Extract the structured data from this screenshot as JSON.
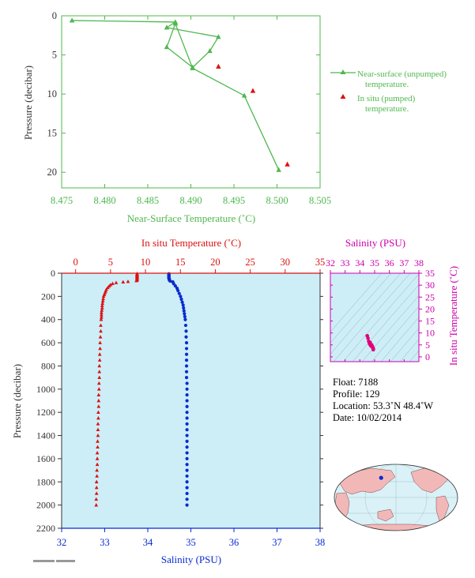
{
  "colors": {
    "green": "#4fb84f",
    "red": "#dd1111",
    "blue": "#0a2ad0",
    "magenta": "#cc00aa",
    "axis": "#333333",
    "profile_bg": "#cdeef7"
  },
  "top_chart": {
    "xlabel": "Near-Surface Temperature (˚C)",
    "ylabel": "Pressure (decibar)",
    "xlim": [
      8.475,
      8.505
    ],
    "ylim": [
      0,
      22
    ],
    "xticks": [
      "8.475",
      "8.480",
      "8.485",
      "8.490",
      "8.495",
      "8.500",
      "8.505"
    ],
    "yticks": [
      "0",
      "5",
      "10",
      "15",
      "20"
    ],
    "legend_unpumped": [
      "Near-surface (unpumped)",
      "temperature."
    ],
    "legend_pumped": [
      "In situ (pumped)",
      "temperature."
    ]
  },
  "bottom_chart": {
    "ylabel": "Pressure (decibar)",
    "top_label": "In situ Temperature (˚C)",
    "bottom_label": "Salinity (PSU)",
    "temp_ticks": [
      "0",
      "5",
      "10",
      "15",
      "20",
      "25",
      "30",
      "35"
    ],
    "sal_ticks": [
      "32",
      "33",
      "34",
      "35",
      "36",
      "37",
      "38"
    ],
    "pres_ticks": [
      "0",
      "200",
      "400",
      "600",
      "800",
      "1000",
      "1200",
      "1400",
      "1600",
      "1800",
      "2000",
      "2200"
    ],
    "temp_lim": [
      -2,
      35
    ],
    "sal_lim": [
      32,
      38
    ],
    "pres_lim": [
      0,
      2200
    ]
  },
  "ts_chart": {
    "top_label": "Salinity (PSU)",
    "right_label": "In situ Temperature (˚C)",
    "sal_ticks": [
      "32",
      "33",
      "34",
      "35",
      "36",
      "37",
      "38"
    ],
    "temp_ticks": [
      "0",
      "5",
      "10",
      "15",
      "20",
      "25",
      "30",
      "35"
    ],
    "sal_lim": [
      32,
      38
    ],
    "temp_lim": [
      -2,
      35
    ]
  },
  "info": {
    "float": "Float:  7188",
    "profile": "Profile:  129",
    "location": "Location:  53.3˚N  48.4˚W",
    "date": "Date:  10/02/2014"
  },
  "map": {
    "marker_lon": -48.4,
    "marker_lat": 53.3
  },
  "chart_data": [
    {
      "type": "line",
      "title": "",
      "xlabel": "Near-Surface Temperature (˚C)",
      "ylabel": "Pressure (decibar)",
      "xlim": [
        8.475,
        8.505
      ],
      "ylim": [
        0,
        22
      ],
      "y_inverted": true,
      "series": [
        {
          "name": "Near-surface (unpumped) temperature.",
          "marker": "triangle",
          "line": true,
          "points": [
            [
              8.4762,
              0.6
            ],
            [
              8.4882,
              0.8
            ],
            [
              8.4872,
              1.5
            ],
            [
              8.4932,
              2.7
            ],
            [
              8.4922,
              4.5
            ],
            [
              8.4902,
              6.6
            ],
            [
              8.4872,
              4.0
            ],
            [
              8.4882,
              1.0
            ],
            [
              8.4902,
              6.7
            ],
            [
              8.4962,
              10.2
            ],
            [
              8.5002,
              19.7
            ]
          ]
        },
        {
          "name": "In situ (pumped) temperature.",
          "marker": "triangle",
          "line": false,
          "points": [
            [
              8.4932,
              6.5
            ],
            [
              8.4972,
              9.6
            ],
            [
              8.5012,
              19.0
            ]
          ]
        }
      ]
    },
    {
      "type": "scatter",
      "title": "",
      "ylabel": "Pressure (decibar)",
      "y_inverted": true,
      "series": [
        {
          "name": "In situ Temperature (˚C)",
          "axis": "top",
          "marker": "triangle",
          "points": [
            [
              8.8,
              5
            ],
            [
              8.8,
              10
            ],
            [
              8.8,
              15
            ],
            [
              8.8,
              20
            ],
            [
              8.8,
              25
            ],
            [
              8.8,
              30
            ],
            [
              8.8,
              35
            ],
            [
              8.8,
              40
            ],
            [
              8.8,
              45
            ],
            [
              8.8,
              50
            ],
            [
              8.8,
              55
            ],
            [
              8.8,
              60
            ],
            [
              8.7,
              65
            ],
            [
              7.5,
              72
            ],
            [
              6.8,
              76
            ],
            [
              5.8,
              82
            ],
            [
              5.3,
              90
            ],
            [
              5.0,
              100
            ],
            [
              4.8,
              112
            ],
            [
              4.6,
              125
            ],
            [
              4.4,
              140
            ],
            [
              4.3,
              155
            ],
            [
              4.2,
              170
            ],
            [
              4.1,
              185
            ],
            [
              4.0,
              200
            ],
            [
              3.95,
              220
            ],
            [
              3.9,
              240
            ],
            [
              3.85,
              260
            ],
            [
              3.8,
              280
            ],
            [
              3.8,
              300
            ],
            [
              3.75,
              320
            ],
            [
              3.7,
              340
            ],
            [
              3.7,
              360
            ],
            [
              3.7,
              380
            ],
            [
              3.65,
              400
            ],
            [
              3.6,
              450
            ],
            [
              3.6,
              500
            ],
            [
              3.55,
              550
            ],
            [
              3.5,
              600
            ],
            [
              3.5,
              650
            ],
            [
              3.45,
              700
            ],
            [
              3.45,
              750
            ],
            [
              3.4,
              800
            ],
            [
              3.4,
              850
            ],
            [
              3.4,
              900
            ],
            [
              3.35,
              950
            ],
            [
              3.35,
              1000
            ],
            [
              3.3,
              1050
            ],
            [
              3.3,
              1100
            ],
            [
              3.3,
              1150
            ],
            [
              3.25,
              1200
            ],
            [
              3.25,
              1250
            ],
            [
              3.2,
              1300
            ],
            [
              3.2,
              1350
            ],
            [
              3.2,
              1400
            ],
            [
              3.15,
              1450
            ],
            [
              3.15,
              1500
            ],
            [
              3.1,
              1550
            ],
            [
              3.1,
              1600
            ],
            [
              3.1,
              1650
            ],
            [
              3.05,
              1700
            ],
            [
              3.05,
              1750
            ],
            [
              3.0,
              1800
            ],
            [
              3.0,
              1850
            ],
            [
              3.0,
              1900
            ],
            [
              2.95,
              1950
            ],
            [
              2.95,
              2000
            ]
          ]
        },
        {
          "name": "Salinity (PSU)",
          "axis": "bottom",
          "marker": "circle",
          "points": [
            [
              34.49,
              5
            ],
            [
              34.49,
              10
            ],
            [
              34.49,
              15
            ],
            [
              34.49,
              20
            ],
            [
              34.49,
              25
            ],
            [
              34.49,
              30
            ],
            [
              34.49,
              35
            ],
            [
              34.49,
              40
            ],
            [
              34.49,
              45
            ],
            [
              34.5,
              50
            ],
            [
              34.5,
              55
            ],
            [
              34.5,
              60
            ],
            [
              34.52,
              68
            ],
            [
              34.58,
              75
            ],
            [
              34.6,
              90
            ],
            [
              34.64,
              110
            ],
            [
              34.68,
              130
            ],
            [
              34.7,
              150
            ],
            [
              34.73,
              175
            ],
            [
              34.76,
              200
            ],
            [
              34.78,
              225
            ],
            [
              34.8,
              250
            ],
            [
              34.82,
              275
            ],
            [
              34.83,
              300
            ],
            [
              34.84,
              325
            ],
            [
              34.85,
              350
            ],
            [
              34.86,
              375
            ],
            [
              34.87,
              400
            ],
            [
              34.88,
              450
            ],
            [
              34.89,
              500
            ],
            [
              34.89,
              550
            ],
            [
              34.9,
              600
            ],
            [
              34.9,
              650
            ],
            [
              34.9,
              700
            ],
            [
              34.9,
              750
            ],
            [
              34.9,
              800
            ],
            [
              34.9,
              850
            ],
            [
              34.9,
              900
            ],
            [
              34.91,
              950
            ],
            [
              34.91,
              1000
            ],
            [
              34.91,
              1050
            ],
            [
              34.91,
              1100
            ],
            [
              34.91,
              1150
            ],
            [
              34.91,
              1200
            ],
            [
              34.91,
              1250
            ],
            [
              34.91,
              1300
            ],
            [
              34.91,
              1350
            ],
            [
              34.91,
              1400
            ],
            [
              34.91,
              1450
            ],
            [
              34.91,
              1500
            ],
            [
              34.91,
              1550
            ],
            [
              34.91,
              1600
            ],
            [
              34.91,
              1650
            ],
            [
              34.91,
              1700
            ],
            [
              34.91,
              1750
            ],
            [
              34.91,
              1800
            ],
            [
              34.91,
              1850
            ],
            [
              34.91,
              1900
            ],
            [
              34.91,
              1950
            ],
            [
              34.91,
              2000
            ]
          ]
        }
      ]
    },
    {
      "type": "scatter",
      "title": "",
      "xlabel": "Salinity (PSU)",
      "ylabel": "In situ Temperature (˚C)",
      "xlim": [
        32,
        38
      ],
      "ylim": [
        -2,
        35
      ],
      "series": [
        {
          "name": "T-S",
          "marker": "circle",
          "points": [
            [
              34.5,
              8.8
            ],
            [
              34.55,
              7.8
            ],
            [
              34.6,
              6.5
            ],
            [
              34.65,
              5.6
            ],
            [
              34.7,
              5.0
            ],
            [
              34.75,
              4.6
            ],
            [
              34.8,
              4.3
            ],
            [
              34.85,
              4.0
            ],
            [
              34.88,
              3.8
            ],
            [
              34.9,
              3.6
            ],
            [
              34.91,
              3.4
            ],
            [
              34.91,
              3.2
            ],
            [
              34.91,
              3.0
            ],
            [
              34.85,
              4.4
            ],
            [
              34.8,
              5.0
            ],
            [
              34.7,
              6.0
            ]
          ]
        }
      ]
    }
  ]
}
